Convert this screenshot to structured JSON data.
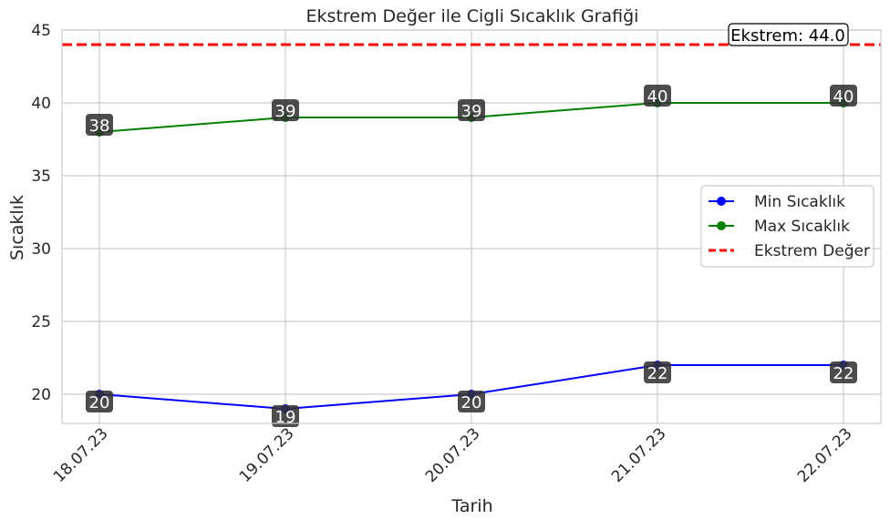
{
  "chart_data": {
    "type": "line",
    "title": "Ekstrem Değer ile Cigli Sıcaklık Grafiği",
    "xlabel": "Tarih",
    "ylabel": "Sıcaklık",
    "categories": [
      "18.07.23",
      "19.07.23",
      "20.07.23",
      "21.07.23",
      "22.07.23"
    ],
    "ylim": [
      18,
      45
    ],
    "yticks": [
      20,
      25,
      30,
      35,
      40,
      45
    ],
    "grid": true,
    "legend_position": "center-right",
    "series": [
      {
        "name": "Min Sıcaklık",
        "values": [
          20,
          19,
          20,
          22,
          22
        ],
        "color": "#0000ff",
        "label_position": "below"
      },
      {
        "name": "Max Sıcaklık",
        "values": [
          38,
          39,
          39,
          40,
          40
        ],
        "color": "#008000",
        "label_position": "above"
      }
    ],
    "reference_line": {
      "name": "Ekstrem Değer",
      "value": 44.0,
      "color": "#ff0000",
      "style": "dashed"
    },
    "annotation": {
      "text": "Ekstrem: 44.0"
    }
  }
}
